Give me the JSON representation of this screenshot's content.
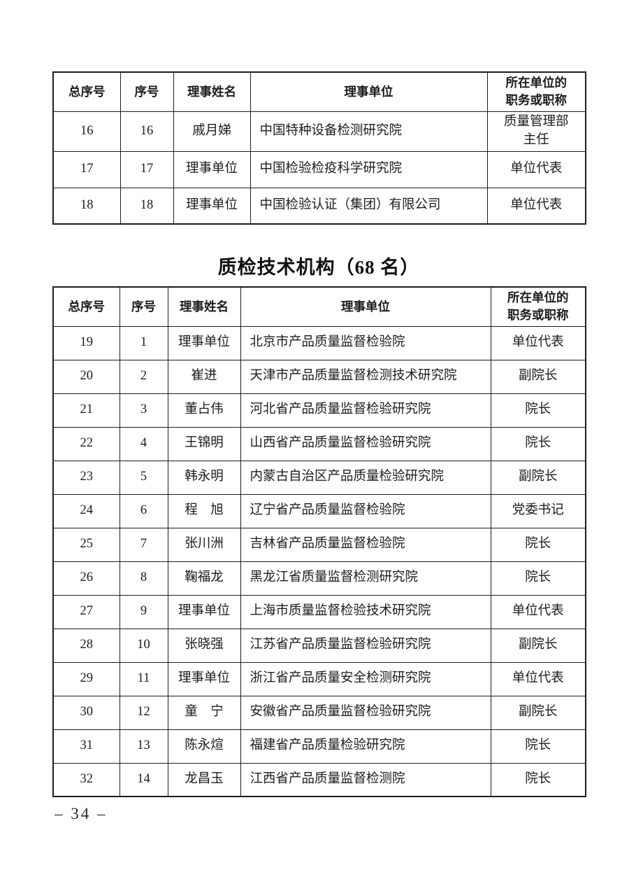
{
  "page": {
    "number": "– 34 –",
    "background": "#ffffff",
    "text_color": "#1c1c1c",
    "border_color": "#1c1c1c"
  },
  "tables": [
    {
      "section": "continued-board-members",
      "title": "",
      "headers": {
        "overall_no": "总序号",
        "no": "序号",
        "name": "理事姓名",
        "org": "理事单位",
        "position": [
          "所在单位的",
          "职务或职称"
        ]
      },
      "rows": [
        {
          "overall_no": "16",
          "no": "16",
          "name": "戚月娣",
          "org": "中国特种设备检测研究院",
          "position": [
            "质量管理部",
            "主任"
          ]
        },
        {
          "overall_no": "17",
          "no": "17",
          "name": "理事单位",
          "org": "中国检验检疫科学研究院",
          "position": "单位代表"
        },
        {
          "overall_no": "18",
          "no": "18",
          "name": "理事单位",
          "org": "中国检验认证（集团）有限公司",
          "position": "单位代表"
        }
      ]
    },
    {
      "section": "qc-technical-institutions",
      "title": "质检技术机构（68 名）",
      "headers": {
        "overall_no": "总序号",
        "no": "序号",
        "name": "理事姓名",
        "org": "理事单位",
        "position": [
          "所在单位的",
          "职务或职称"
        ]
      },
      "rows": [
        {
          "overall_no": "19",
          "no": "1",
          "name": "理事单位",
          "org": "北京市产品质量监督检验院",
          "position": "单位代表"
        },
        {
          "overall_no": "20",
          "no": "2",
          "name": "崔进",
          "org": "天津市产品质量监督检测技术研究院",
          "position": "副院长"
        },
        {
          "overall_no": "21",
          "no": "3",
          "name": "董占伟",
          "org": "河北省产品质量监督检验研究院",
          "position": "院长"
        },
        {
          "overall_no": "22",
          "no": "4",
          "name": "王锦明",
          "org": "山西省产品质量监督检验研究院",
          "position": "院长"
        },
        {
          "overall_no": "23",
          "no": "5",
          "name": "韩永明",
          "org": "内蒙古自治区产品质量检验研究院",
          "position": "副院长"
        },
        {
          "overall_no": "24",
          "no": "6",
          "name": "程　旭",
          "org": "辽宁省产品质量监督检验院",
          "position": "党委书记"
        },
        {
          "overall_no": "25",
          "no": "7",
          "name": "张川洲",
          "org": "吉林省产品质量监督检验院",
          "position": "院长"
        },
        {
          "overall_no": "26",
          "no": "8",
          "name": "鞠福龙",
          "org": "黑龙江省质量监督检测研究院",
          "position": "院长"
        },
        {
          "overall_no": "27",
          "no": "9",
          "name": "理事单位",
          "org": "上海市质量监督检验技术研究院",
          "position": "单位代表"
        },
        {
          "overall_no": "28",
          "no": "10",
          "name": "张晓强",
          "org": "江苏省产品质量监督检验研究院",
          "position": "副院长"
        },
        {
          "overall_no": "29",
          "no": "11",
          "name": "理事单位",
          "org": "浙江省产品质量安全检测研究院",
          "position": "单位代表"
        },
        {
          "overall_no": "30",
          "no": "12",
          "name": "童　宁",
          "org": "安徽省产品质量监督检验研究院",
          "position": "副院长"
        },
        {
          "overall_no": "31",
          "no": "13",
          "name": "陈永煊",
          "org": "福建省产品质量检验研究院",
          "position": "院长"
        },
        {
          "overall_no": "32",
          "no": "14",
          "name": "龙昌玉",
          "org": "江西省产品质量监督检测院",
          "position": "院长"
        }
      ]
    }
  ]
}
